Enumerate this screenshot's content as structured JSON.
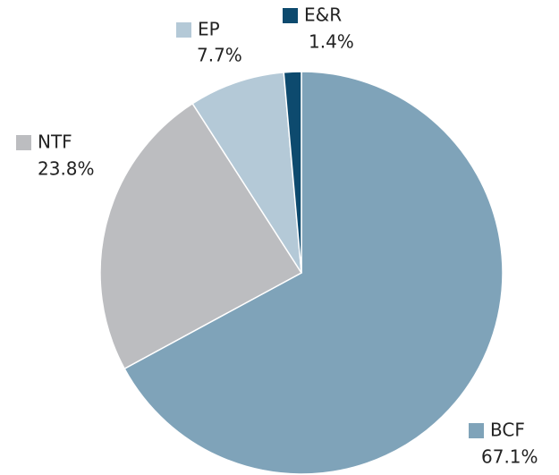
{
  "chart_data": {
    "type": "pie",
    "categories": [
      "BCF",
      "NTF",
      "EP",
      "E&R"
    ],
    "values": [
      67.1,
      23.8,
      7.7,
      1.4
    ],
    "value_labels": [
      "67.1%",
      "23.8%",
      "7.7%",
      "1.4%"
    ],
    "colors": [
      "#7fa3b9",
      "#bcbdc0",
      "#b4c9d7",
      "#0d4a6e"
    ]
  }
}
